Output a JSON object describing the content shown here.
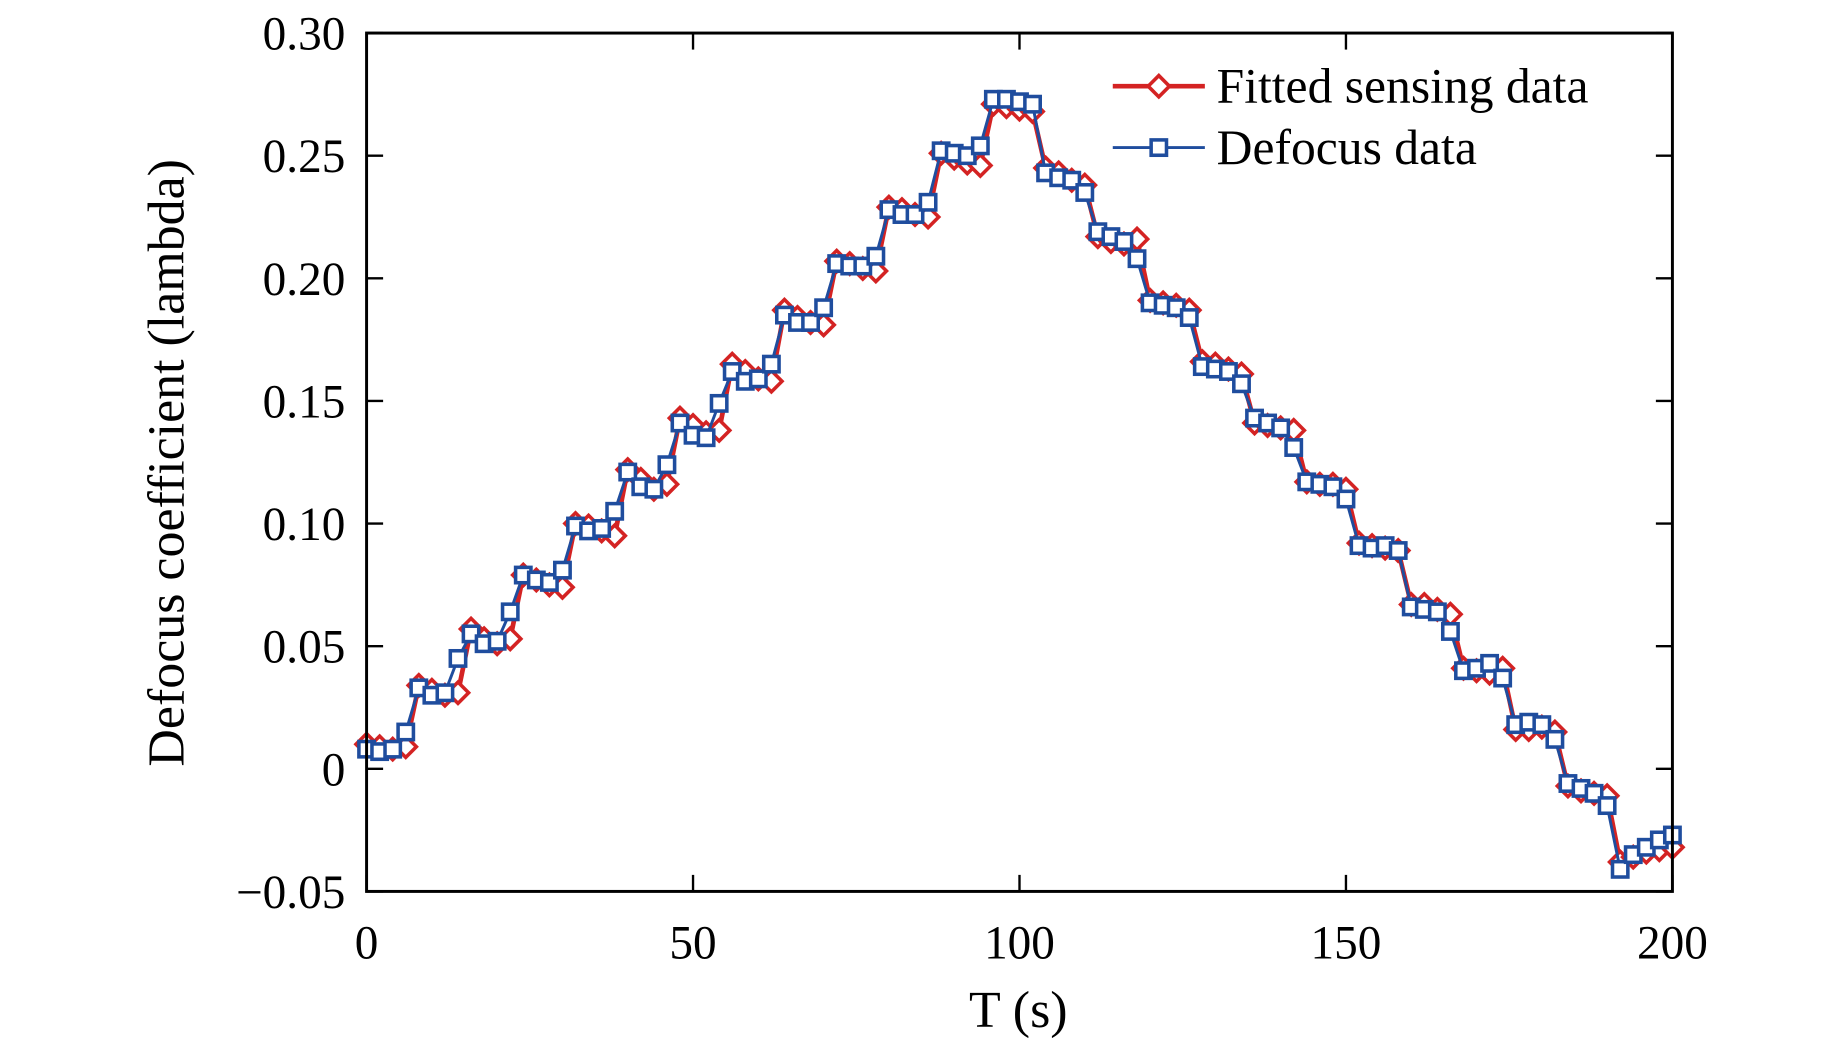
{
  "chart_data": {
    "type": "line",
    "xlabel": "T (s)",
    "ylabel": "Defocus coefficient (lambda)",
    "xlim": [
      0,
      200
    ],
    "ylim": [
      -0.05,
      0.3
    ],
    "xticks": [
      0,
      50,
      100,
      150,
      200
    ],
    "yticks": [
      {
        "value": -0.05,
        "label": "−0.05"
      },
      {
        "value": 0,
        "label": "0"
      },
      0.05,
      {
        "value": 0.1,
        "label": "0.10"
      },
      0.15,
      {
        "value": 0.2,
        "label": "0.20"
      },
      0.25,
      {
        "value": 0.3,
        "label": "0.30"
      }
    ],
    "legend": "upper right",
    "x": [
      0,
      2,
      4,
      6,
      8,
      10,
      12,
      14,
      16,
      18,
      20,
      22,
      24,
      26,
      28,
      30,
      32,
      34,
      36,
      38,
      40,
      42,
      44,
      46,
      48,
      50,
      52,
      54,
      56,
      58,
      60,
      62,
      64,
      66,
      68,
      70,
      72,
      74,
      76,
      78,
      80,
      82,
      84,
      86,
      88,
      90,
      92,
      94,
      96,
      98,
      100,
      102,
      104,
      106,
      108,
      110,
      112,
      114,
      116,
      118,
      120,
      122,
      124,
      126,
      128,
      130,
      132,
      134,
      136,
      138,
      140,
      142,
      144,
      146,
      148,
      150,
      152,
      154,
      156,
      158,
      160,
      162,
      164,
      166,
      168,
      170,
      172,
      174,
      176,
      178,
      180,
      182,
      184,
      186,
      188,
      190,
      192,
      194,
      196,
      198,
      200
    ],
    "series": [
      {
        "name": "Fitted sensing data",
        "color": "#d42323",
        "marker": "diamond",
        "values": [
          0.01,
          0.009,
          0.008,
          0.009,
          0.034,
          0.032,
          0.03,
          0.031,
          0.057,
          0.053,
          0.051,
          0.053,
          0.079,
          0.077,
          0.075,
          0.074,
          0.1,
          0.099,
          0.097,
          0.095,
          0.122,
          0.118,
          0.114,
          0.116,
          0.143,
          0.14,
          0.137,
          0.138,
          0.165,
          0.162,
          0.159,
          0.158,
          0.187,
          0.184,
          0.182,
          0.181,
          0.207,
          0.206,
          0.204,
          0.203,
          0.229,
          0.228,
          0.226,
          0.225,
          0.251,
          0.249,
          0.247,
          0.246,
          0.271,
          0.27,
          0.269,
          0.268,
          0.245,
          0.243,
          0.24,
          0.238,
          0.217,
          0.215,
          0.214,
          0.216,
          0.191,
          0.19,
          0.189,
          0.187,
          0.166,
          0.165,
          0.163,
          0.161,
          0.141,
          0.14,
          0.139,
          0.138,
          0.117,
          0.116,
          0.116,
          0.114,
          0.092,
          0.091,
          0.09,
          0.089,
          0.067,
          0.067,
          0.065,
          0.063,
          0.041,
          0.04,
          0.039,
          0.041,
          0.016,
          0.016,
          0.017,
          0.015,
          -0.007,
          -0.009,
          -0.01,
          -0.011,
          -0.038,
          -0.036,
          -0.034,
          -0.033,
          -0.032
        ]
      },
      {
        "name": "Defocus data",
        "color": "#1f4d9e",
        "marker": "square",
        "values": [
          0.008,
          0.007,
          0.008,
          0.015,
          0.033,
          0.03,
          0.031,
          0.045,
          0.055,
          0.051,
          0.052,
          0.064,
          0.079,
          0.077,
          0.076,
          0.081,
          0.099,
          0.097,
          0.098,
          0.105,
          0.121,
          0.115,
          0.114,
          0.124,
          0.141,
          0.136,
          0.135,
          0.149,
          0.162,
          0.158,
          0.159,
          0.165,
          0.185,
          0.182,
          0.182,
          0.188,
          0.206,
          0.205,
          0.205,
          0.209,
          0.228,
          0.226,
          0.226,
          0.231,
          0.252,
          0.251,
          0.25,
          0.254,
          0.273,
          0.273,
          0.272,
          0.271,
          0.243,
          0.241,
          0.24,
          0.235,
          0.219,
          0.217,
          0.215,
          0.208,
          0.19,
          0.189,
          0.188,
          0.184,
          0.164,
          0.163,
          0.162,
          0.157,
          0.143,
          0.141,
          0.139,
          0.131,
          0.117,
          0.116,
          0.115,
          0.11,
          0.091,
          0.09,
          0.091,
          0.089,
          0.066,
          0.065,
          0.064,
          0.056,
          0.04,
          0.041,
          0.043,
          0.037,
          0.018,
          0.019,
          0.018,
          0.012,
          -0.006,
          -0.008,
          -0.01,
          -0.015,
          -0.041,
          -0.035,
          -0.032,
          -0.029,
          -0.027
        ]
      }
    ]
  }
}
